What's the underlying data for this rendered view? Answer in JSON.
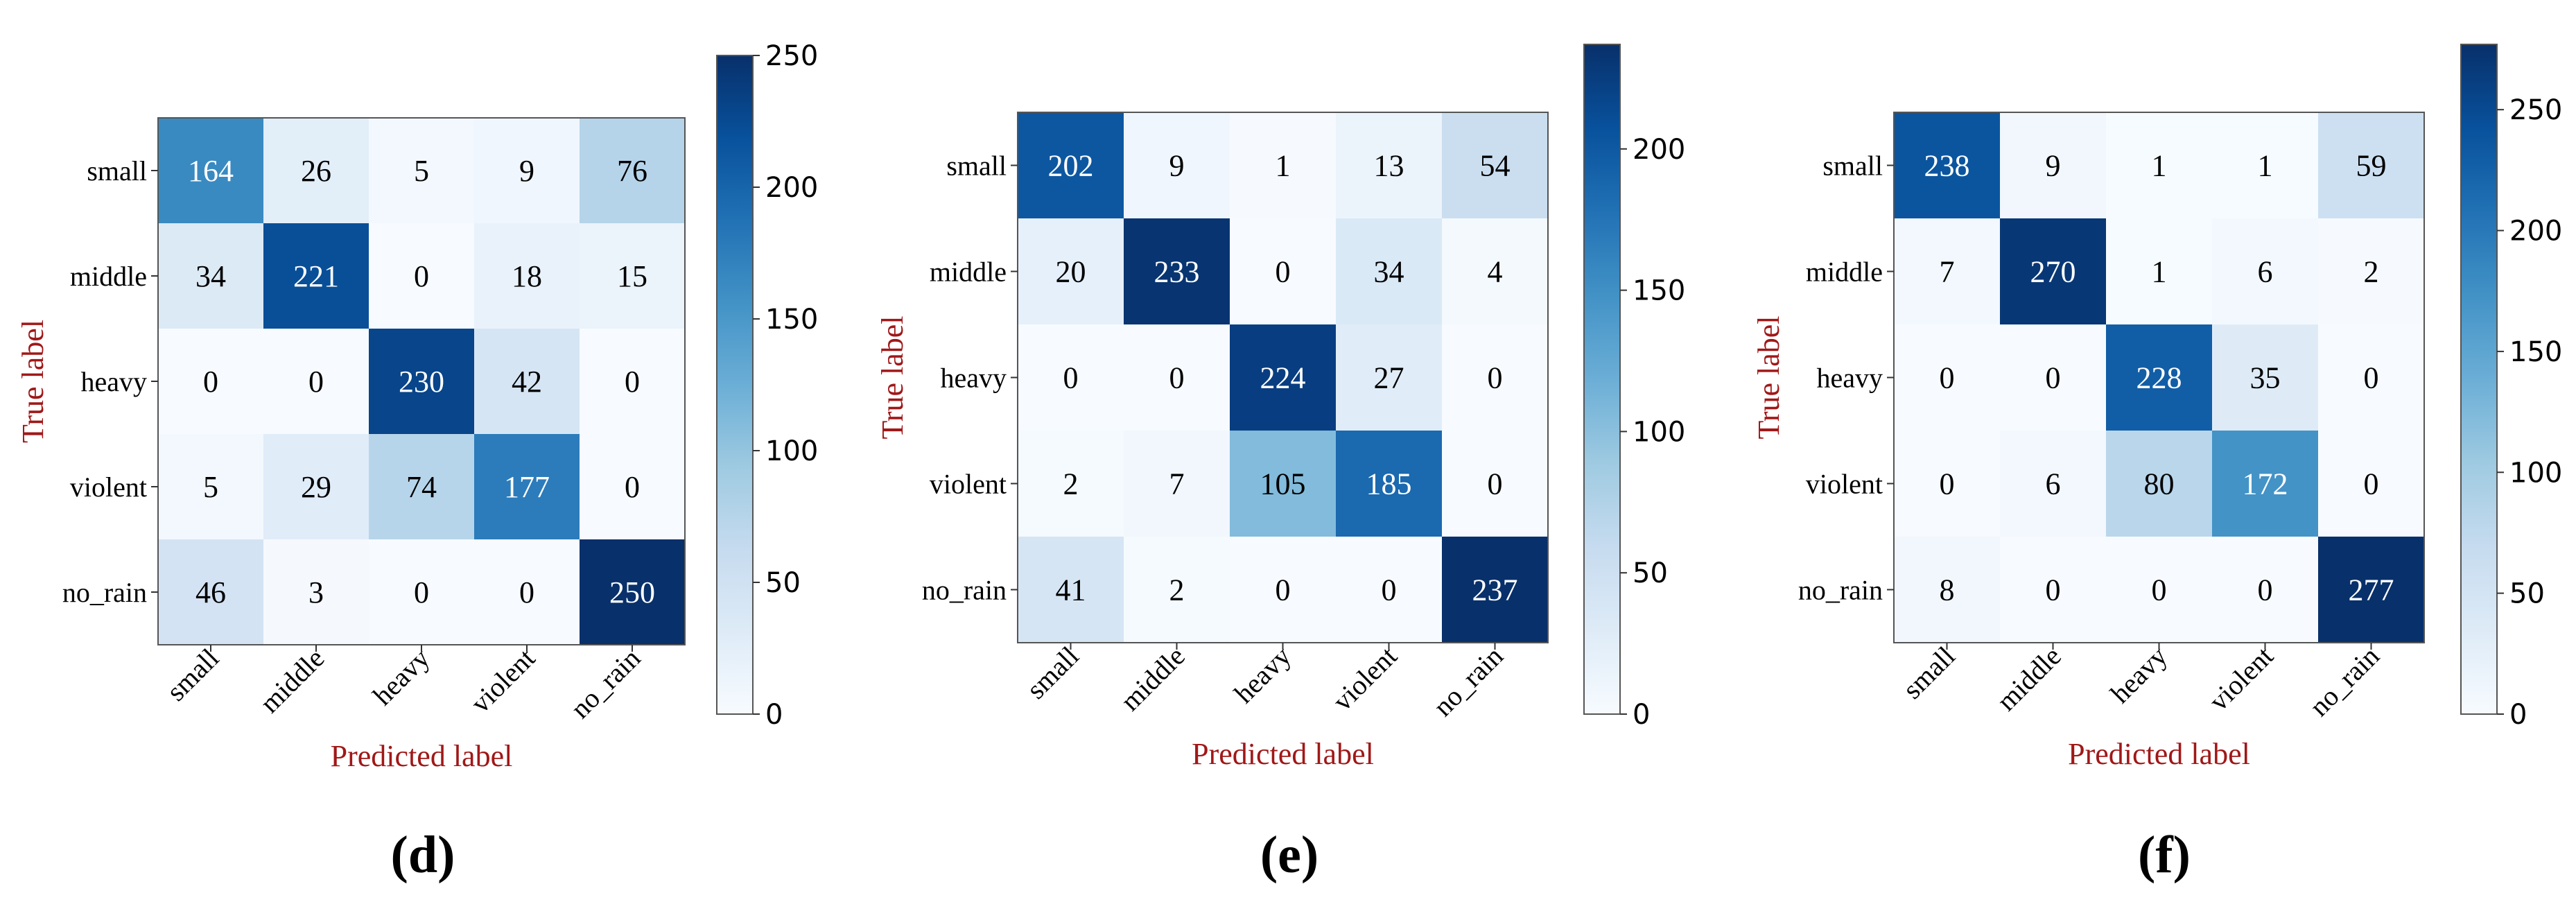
{
  "chart_data": [
    {
      "type": "heatmap",
      "panel_label": "(d)",
      "xlabel": "Predicted label",
      "ylabel": "True label",
      "categories": [
        "small",
        "middle",
        "heavy",
        "violent",
        "no_rain"
      ],
      "matrix": [
        [
          164,
          26,
          5,
          9,
          76
        ],
        [
          34,
          221,
          0,
          18,
          15
        ],
        [
          0,
          0,
          230,
          42,
          0
        ],
        [
          5,
          29,
          74,
          177,
          0
        ],
        [
          46,
          3,
          0,
          0,
          250
        ]
      ],
      "colorbar": {
        "min": 0,
        "max": 250,
        "ticks": [
          0,
          50,
          100,
          150,
          200,
          250
        ]
      },
      "colormap": "Blues"
    },
    {
      "type": "heatmap",
      "panel_label": "(e)",
      "xlabel": "Predicted label",
      "ylabel": "True label",
      "categories": [
        "small",
        "middle",
        "heavy",
        "violent",
        "no_rain"
      ],
      "matrix": [
        [
          202,
          9,
          1,
          13,
          54
        ],
        [
          20,
          233,
          0,
          34,
          4
        ],
        [
          0,
          0,
          224,
          27,
          0
        ],
        [
          2,
          7,
          105,
          185,
          0
        ],
        [
          41,
          2,
          0,
          0,
          237
        ]
      ],
      "colorbar": {
        "min": 0,
        "max": 237,
        "ticks": [
          0,
          50,
          100,
          150,
          200
        ]
      },
      "colormap": "Blues"
    },
    {
      "type": "heatmap",
      "panel_label": "(f)",
      "xlabel": "Predicted label",
      "ylabel": "True label",
      "categories": [
        "small",
        "middle",
        "heavy",
        "violent",
        "no_rain"
      ],
      "matrix": [
        [
          238,
          9,
          1,
          1,
          59
        ],
        [
          7,
          270,
          1,
          6,
          2
        ],
        [
          0,
          0,
          228,
          35,
          0
        ],
        [
          0,
          6,
          80,
          172,
          0
        ],
        [
          8,
          0,
          0,
          0,
          277
        ]
      ],
      "colorbar": {
        "min": 0,
        "max": 277,
        "ticks": [
          0,
          50,
          100,
          150,
          200,
          250
        ]
      },
      "colormap": "Blues"
    }
  ],
  "style": {
    "axis_title_color": "#a01818",
    "text_dark": "#000000",
    "text_light": "#ffffff",
    "frame_color": "#555555"
  }
}
